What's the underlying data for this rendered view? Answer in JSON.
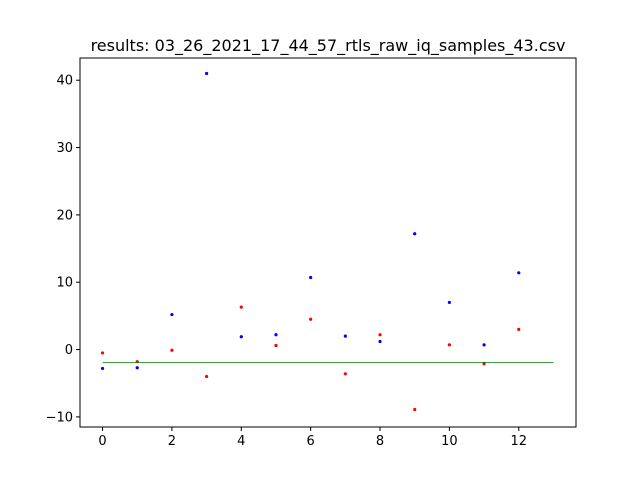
{
  "chart_data": {
    "type": "scatter",
    "title": "results: 03_26_2021_17_44_57_rtls_raw_iq_samples_43.csv",
    "xlabel": "",
    "ylabel": "",
    "xlim": [
      -0.65,
      13.65
    ],
    "ylim": [
      -11.5,
      43.3
    ],
    "xticks": [
      0,
      2,
      4,
      6,
      8,
      10,
      12
    ],
    "yticks": [
      -10,
      0,
      10,
      20,
      30,
      40
    ],
    "grid": false,
    "legend": "none",
    "series": [
      {
        "color": "#0000ff",
        "marker": "point",
        "x": [
          0,
          1,
          2,
          3,
          4,
          5,
          6,
          7,
          8,
          9,
          10,
          11,
          12
        ],
        "y": [
          -2.8,
          -2.7,
          5.2,
          41.0,
          1.9,
          2.2,
          10.7,
          2.0,
          1.2,
          17.2,
          7.0,
          0.7,
          11.4
        ]
      },
      {
        "color": "#ff0000",
        "marker": "point",
        "x": [
          0,
          1,
          2,
          3,
          4,
          5,
          6,
          7,
          8,
          9,
          10,
          11,
          12
        ],
        "y": [
          -0.5,
          -1.8,
          -0.1,
          -4.0,
          6.3,
          0.6,
          4.5,
          -3.6,
          2.2,
          -8.9,
          0.7,
          -2.1,
          3.0
        ]
      },
      {
        "color": "#008000",
        "marker": "line",
        "x": [
          0,
          13
        ],
        "y": [
          -1.9,
          -1.9
        ]
      }
    ]
  }
}
